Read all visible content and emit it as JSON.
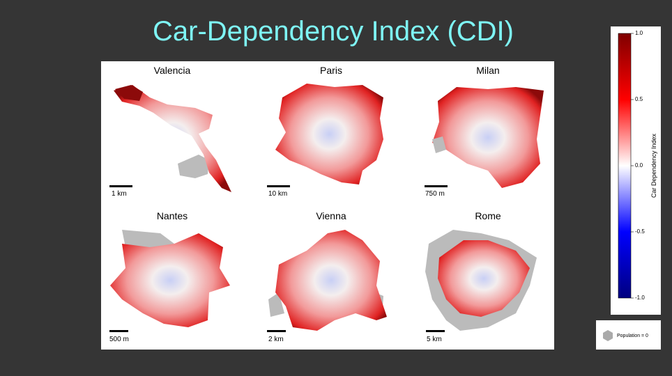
{
  "title": "Car-Dependency Index (CDI)",
  "panels": [
    {
      "city": "Valencia",
      "scale": "1 km"
    },
    {
      "city": "Paris",
      "scale": "10 km"
    },
    {
      "city": "Milan",
      "scale": "750 m"
    },
    {
      "city": "Nantes",
      "scale": "500 m"
    },
    {
      "city": "Vienna",
      "scale": "2 km"
    },
    {
      "city": "Rome",
      "scale": "5 km"
    }
  ],
  "colorbar": {
    "label": "Car Dependency Index",
    "lim": [
      -1,
      1
    ],
    "ticks": [
      {
        "value": 1,
        "label": "1.0"
      },
      0.5,
      {
        "value": 0,
        "label": "0.0"
      },
      -0.5,
      {
        "value": -1,
        "label": "-1.0"
      }
    ]
  },
  "legend": {
    "label": "Population = 0"
  }
}
